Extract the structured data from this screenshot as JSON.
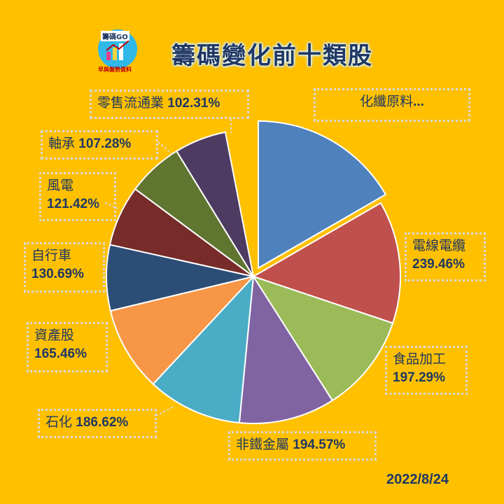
{
  "title": "籌碼變化前十類股",
  "logo": {
    "badge_text": "籌碼GO",
    "sub_text": "早與盤勢資料"
  },
  "date": "2022/8/24",
  "chart_data": {
    "type": "pie",
    "title": "籌碼變化前十類股",
    "slices": [
      {
        "name": "化纖原料",
        "value_text": "...",
        "color": "#4F81BD",
        "exploded": true
      },
      {
        "name": "電線電纜",
        "value": 239.46,
        "value_text": "239.46%",
        "color": "#C0504D"
      },
      {
        "name": "食品加工",
        "value": 197.29,
        "value_text": "197.29%",
        "color": "#9BBB59"
      },
      {
        "name": "非鐵金屬",
        "value": 194.57,
        "value_text": "194.57%",
        "color": "#8064A2"
      },
      {
        "name": "石化",
        "value": 186.62,
        "value_text": "186.62%",
        "color": "#4BACC6"
      },
      {
        "name": "資產股",
        "value": 165.46,
        "value_text": "165.46%",
        "color": "#F79646"
      },
      {
        "name": "自行車",
        "value": 130.69,
        "value_text": "130.69%",
        "color": "#2C4D75"
      },
      {
        "name": "風電",
        "value": 121.42,
        "value_text": "121.42%",
        "color": "#772C2A"
      },
      {
        "name": "軸承",
        "value": 107.28,
        "value_text": "107.28%",
        "color": "#5F7530"
      },
      {
        "name": "零售流通業",
        "value": 102.31,
        "value_text": "102.31%",
        "color": "#4D3B62"
      }
    ]
  }
}
